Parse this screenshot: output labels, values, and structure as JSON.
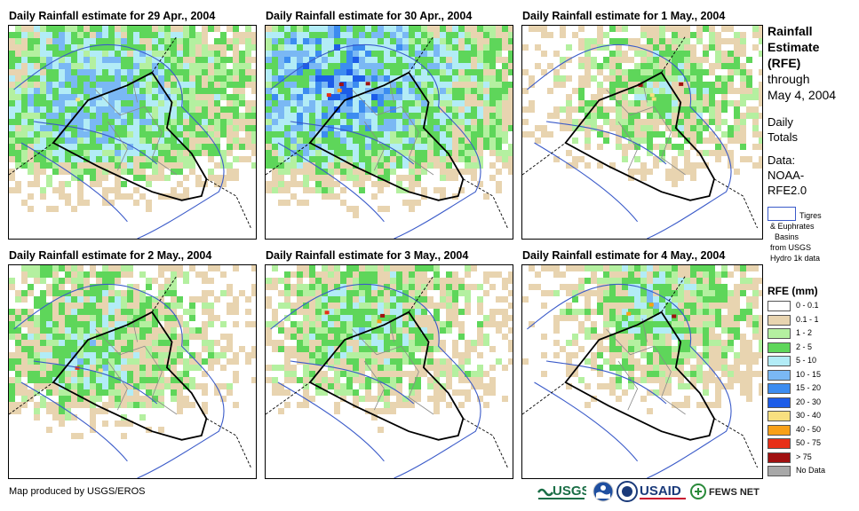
{
  "panels": [
    {
      "title": "Daily Rainfall estimate for 29 Apr., 2004"
    },
    {
      "title": "Daily Rainfall estimate for 30 Apr., 2004"
    },
    {
      "title": "Daily Rainfall estimate for 1 May., 2004"
    },
    {
      "title": "Daily Rainfall estimate for 2 May., 2004"
    },
    {
      "title": "Daily Rainfall estimate for 3 May., 2004"
    },
    {
      "title": "Daily Rainfall estimate for 4 May., 2004"
    }
  ],
  "side": {
    "title_lines": [
      "Rainfall",
      "Estimate",
      "(RFE)"
    ],
    "through_label": "through",
    "through_date": "May 4, 2004",
    "totals_lines": [
      "Daily",
      "Totals"
    ],
    "data_lines": [
      "Data:",
      "NOAA-",
      "RFE2.0"
    ]
  },
  "basin_legend": {
    "line1": "Tigres",
    "line2": "& Euphrates",
    "line3": "Basins",
    "line4": "from USGS",
    "line5": "Hydro 1k data",
    "color": "#3b5bc9"
  },
  "rfe_legend": {
    "title": "RFE (mm)",
    "items": [
      {
        "label": "0 - 0.1",
        "color": "#ffffff"
      },
      {
        "label": "0.1 - 1",
        "color": "#e8d4b0"
      },
      {
        "label": "1 - 2",
        "color": "#b4f0a0"
      },
      {
        "label": "2 - 5",
        "color": "#5ed65a"
      },
      {
        "label": "5 - 10",
        "color": "#b2ecf6"
      },
      {
        "label": "10 - 15",
        "color": "#7ab8f4"
      },
      {
        "label": "15 - 20",
        "color": "#3c8cf0"
      },
      {
        "label": "20 - 30",
        "color": "#1c5ce8"
      },
      {
        "label": "30 - 40",
        "color": "#f8e080"
      },
      {
        "label": "40 - 50",
        "color": "#f8a018"
      },
      {
        "label": "50 - 75",
        "color": "#e83018"
      },
      {
        "label": "> 75",
        "color": "#a01010"
      },
      {
        "label": "No Data",
        "color": "#a8a8a8"
      }
    ]
  },
  "credit": "Map produced by USGS/EROS",
  "logos": {
    "usgs": "USGS",
    "usaid": "USAID",
    "fews": "FEWS NET"
  }
}
